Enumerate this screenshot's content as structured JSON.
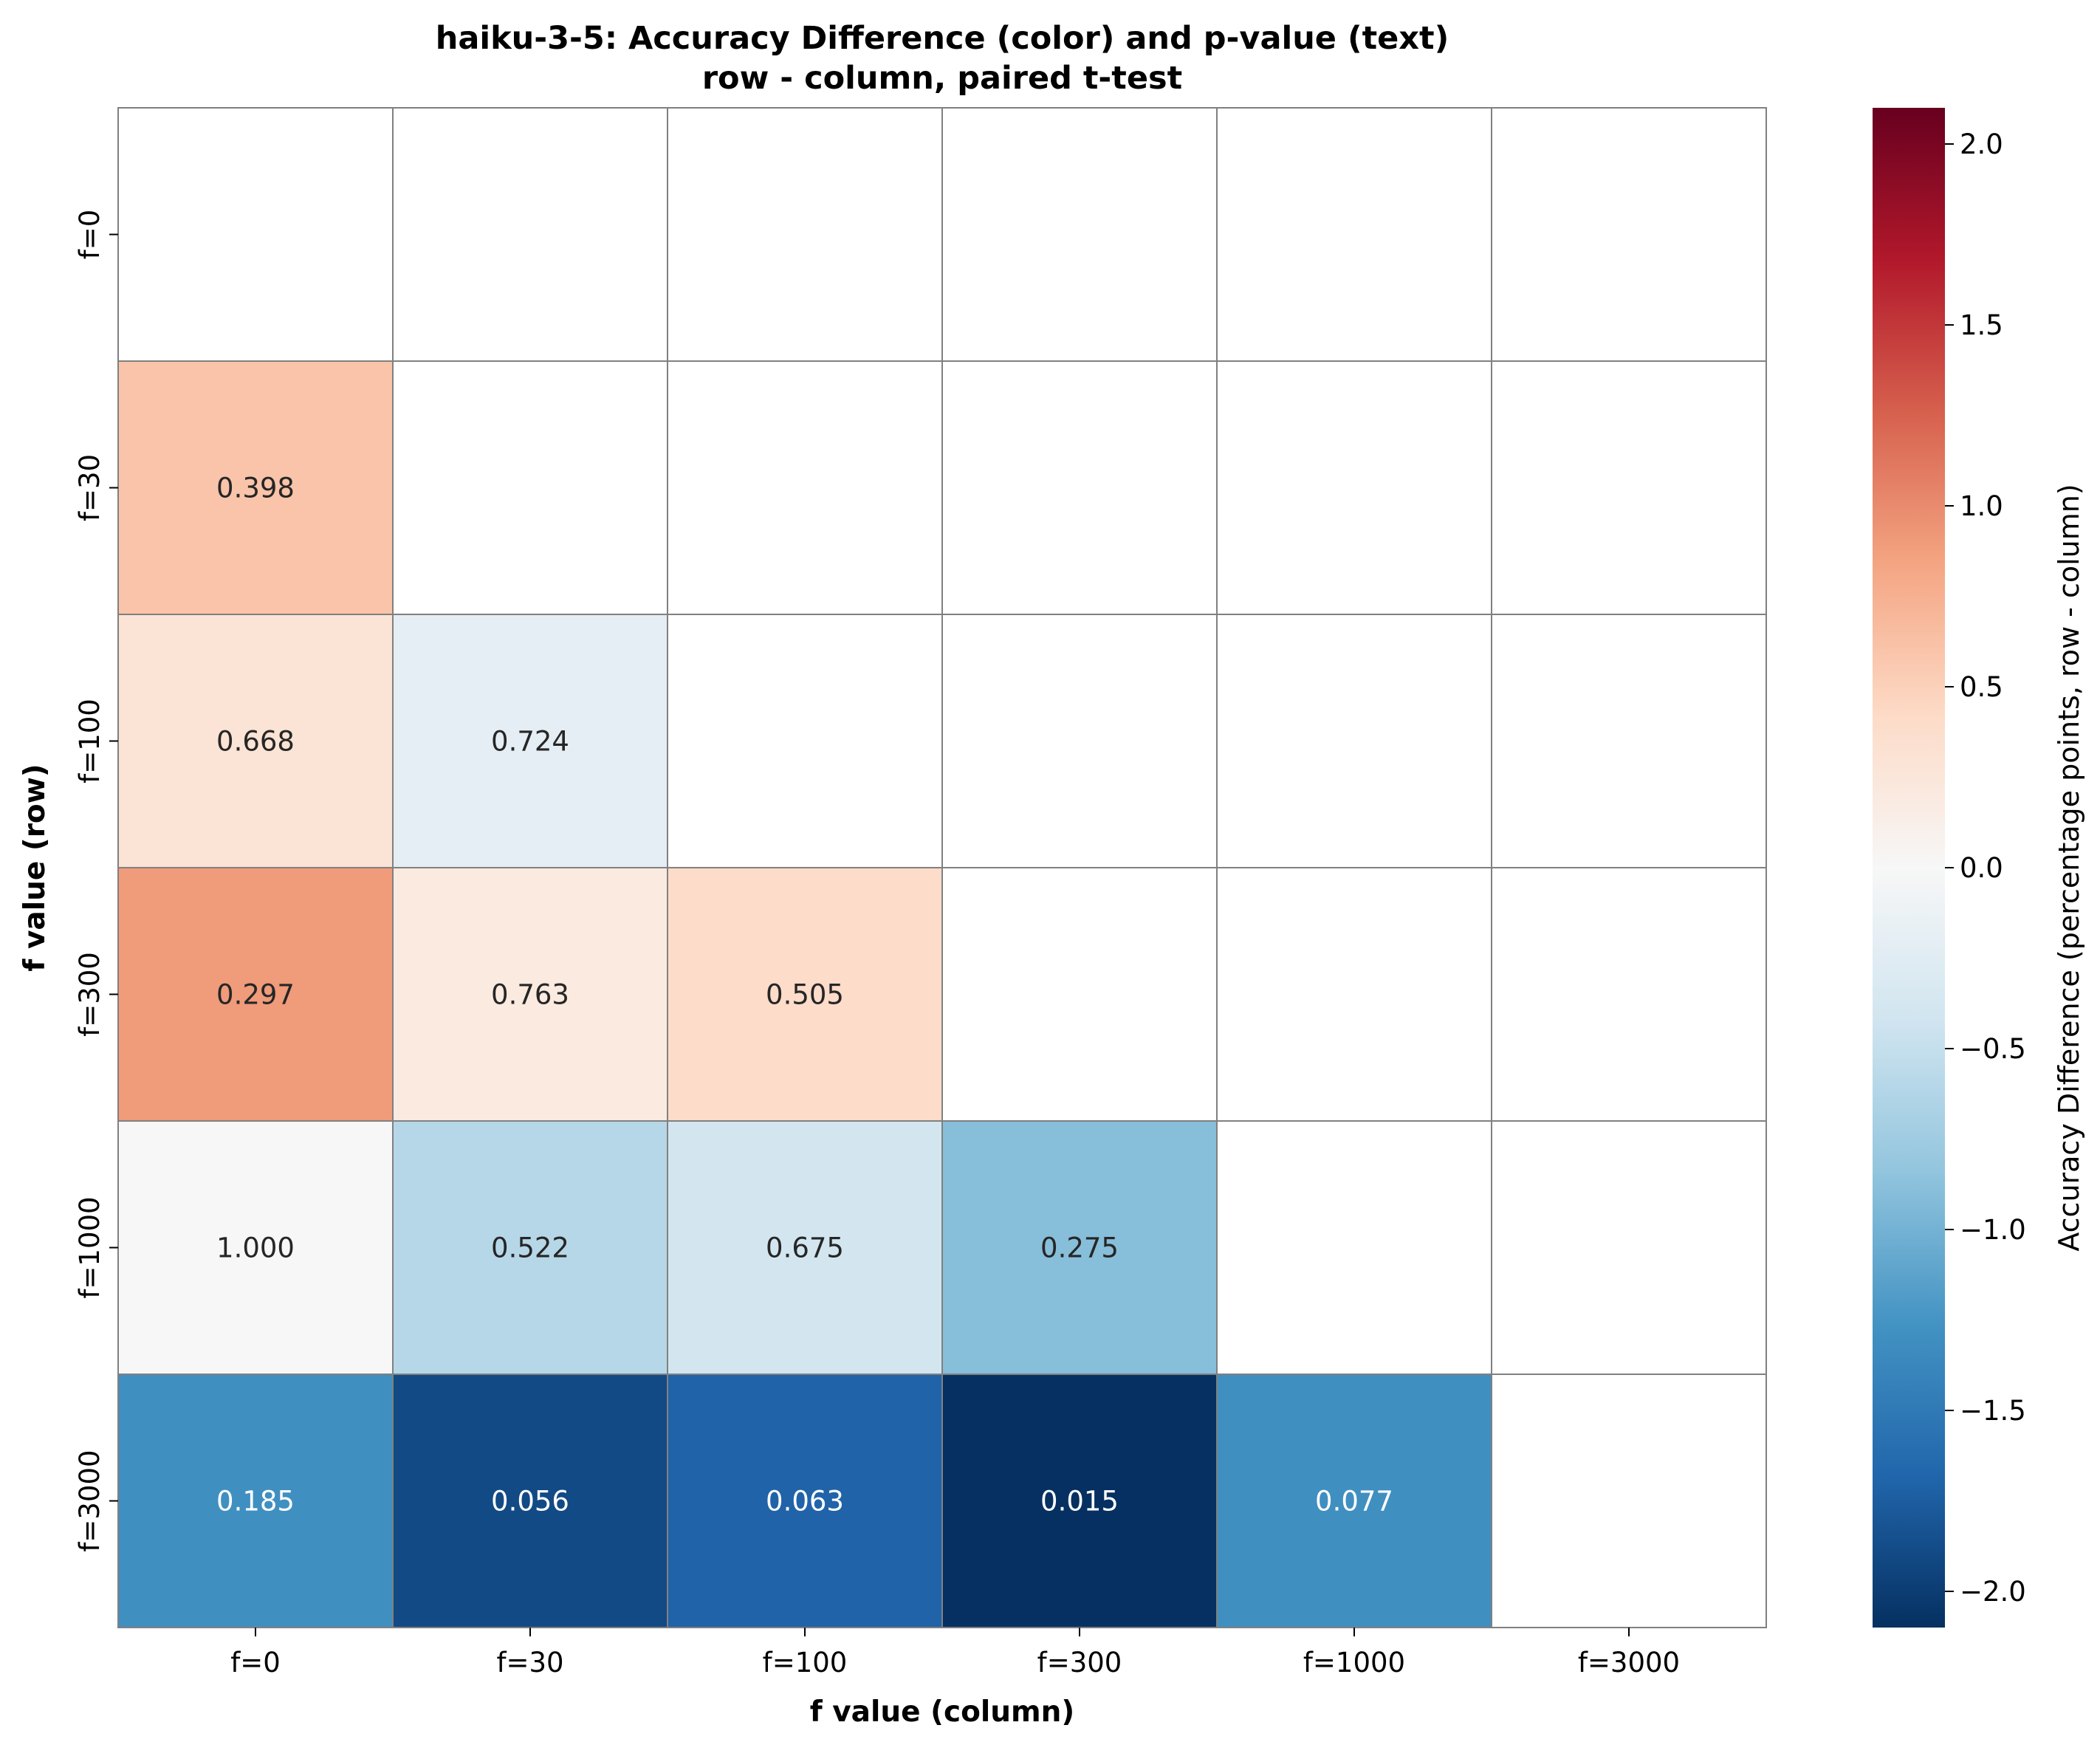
{
  "chart_data": {
    "type": "heatmap",
    "title": "haiku-3-5: Accuracy Difference (color) and p-value (text)",
    "subtitle": "row - column, paired t-test",
    "xlabel": "f value (column)",
    "ylabel": "f value (row)",
    "row_labels": [
      "f=0",
      "f=30",
      "f=100",
      "f=300",
      "f=1000",
      "f=3000"
    ],
    "col_labels": [
      "f=0",
      "f=30",
      "f=100",
      "f=300",
      "f=1000",
      "f=3000"
    ],
    "accuracy_difference": [
      [
        null,
        null,
        null,
        null,
        null,
        null
      ],
      [
        0.6,
        null,
        null,
        null,
        null,
        null
      ],
      [
        0.3,
        -0.2,
        null,
        null,
        null,
        null
      ],
      [
        0.9,
        0.2,
        0.4,
        null,
        null,
        null
      ],
      [
        0.0,
        -0.6,
        -0.4,
        -0.9,
        null,
        null
      ],
      [
        -1.3,
        -1.9,
        -1.7,
        -2.1,
        -1.3,
        null
      ]
    ],
    "p_values": [
      [
        null,
        null,
        null,
        null,
        null,
        null
      ],
      [
        "0.398",
        null,
        null,
        null,
        null,
        null
      ],
      [
        "0.668",
        "0.724",
        null,
        null,
        null,
        null
      ],
      [
        "0.297",
        "0.763",
        "0.505",
        null,
        null,
        null
      ],
      [
        "1.000",
        "0.522",
        "0.675",
        "0.275",
        null,
        null
      ],
      [
        "0.185",
        "0.056",
        "0.063",
        "0.015",
        "0.077",
        null
      ]
    ],
    "colorbar": {
      "label": "Accuracy Difference (percentage points, row - column)",
      "colormap": "RdBu_r",
      "vmin": -2.1,
      "vmax": 2.1,
      "ticks": [
        2.0,
        1.5,
        1.0,
        0.5,
        0.0,
        -0.5,
        -1.0,
        -1.5,
        -2.0
      ],
      "tick_labels": [
        "2.0",
        "1.5",
        "1.0",
        "0.5",
        "0.0",
        "−0.5",
        "−1.0",
        "−1.5",
        "−2.0"
      ]
    },
    "grid_color": "#808080"
  }
}
